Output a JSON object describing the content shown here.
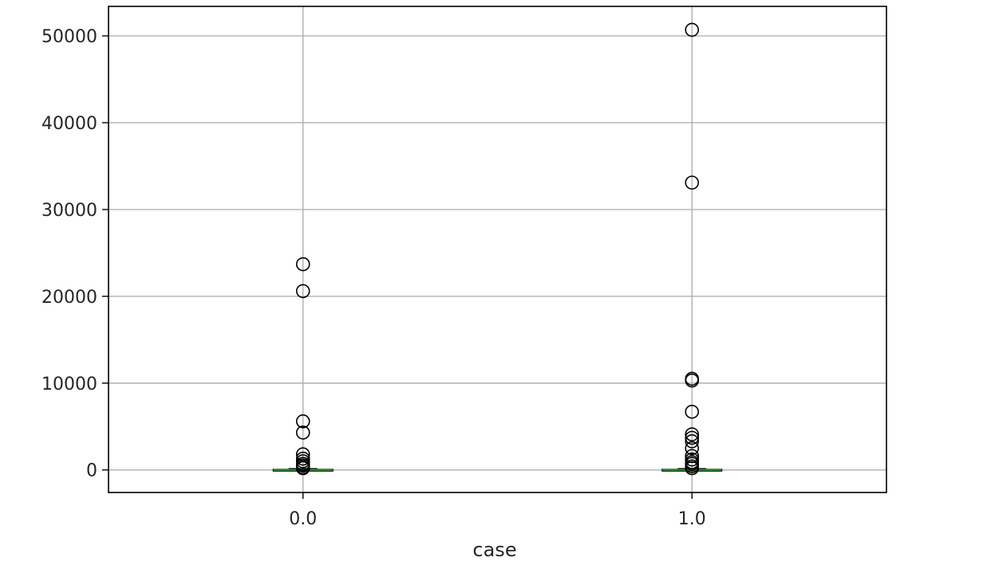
{
  "chart_data": {
    "type": "box",
    "xlabel": "case",
    "ylabel": "",
    "title": "",
    "categories": [
      "0.0",
      "1.0"
    ],
    "ylim": [
      -2600,
      53400
    ],
    "yticks": [
      0,
      10000,
      20000,
      30000,
      40000,
      50000
    ],
    "ytick_labels": [
      "0",
      "10000",
      "20000",
      "30000",
      "40000",
      "50000"
    ],
    "grid": true,
    "groups": [
      {
        "category": "0.0",
        "whisker_low": 0,
        "q1": 0,
        "median": 0,
        "q3": 40,
        "whisker_high": 120,
        "outliers": [
          23700,
          20600,
          5600,
          4300,
          1800,
          1300,
          1000,
          700,
          500,
          300,
          200
        ]
      },
      {
        "category": "1.0",
        "whisker_low": 0,
        "q1": 0,
        "median": 0,
        "q3": 40,
        "whisker_high": 120,
        "outliers": [
          50700,
          33100,
          10500,
          10300,
          6700,
          4100,
          3700,
          3300,
          2500,
          1600,
          1200,
          900,
          700,
          400,
          200
        ]
      }
    ],
    "colors": {
      "median": "#2ca02c",
      "box": "#000000",
      "grid": "#b0b0b0",
      "frame": "#000000"
    }
  }
}
